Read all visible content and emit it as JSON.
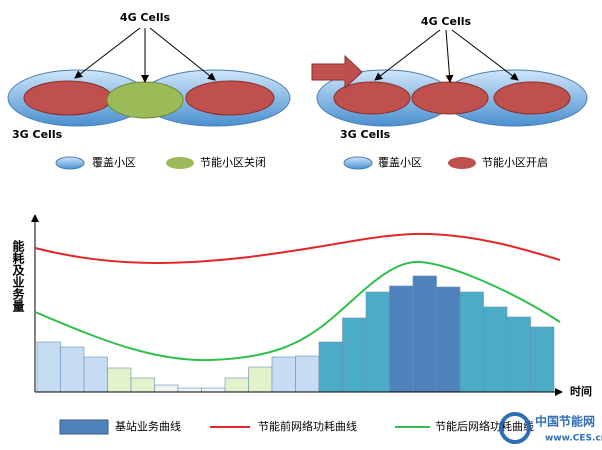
{
  "left_diagram": {
    "top_label": "4G Cells",
    "bottom_label": "3G Cells",
    "legend": [
      "覆盖小区",
      "节能小区关闭"
    ]
  },
  "right_diagram": {
    "top_label": "4G Cells",
    "bottom_label": "3G Cells",
    "legend": [
      "覆盖小区",
      "节能小区开启"
    ]
  },
  "chart": {
    "y_label": "能耗及业务量",
    "x_label": "时间",
    "legend": [
      "基站业务曲线",
      "节能前网络功耗曲线",
      "节能后网络功耗曲线"
    ]
  },
  "watermark": {
    "name": "中国节能网",
    "url": "www.CES.cn"
  }
}
